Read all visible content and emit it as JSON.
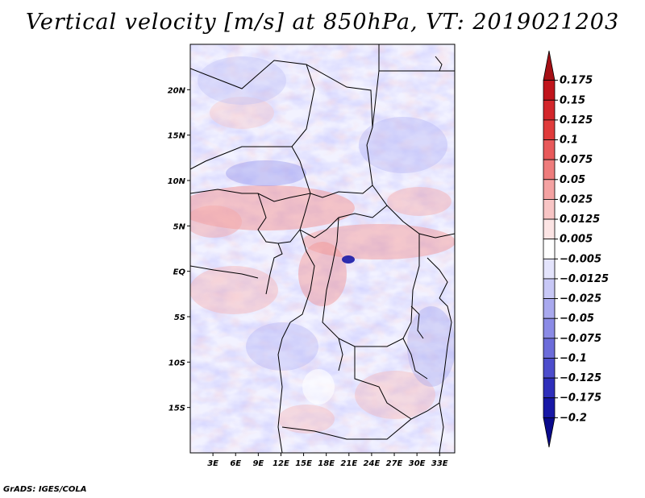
{
  "title": "Vertical velocity [m/s] at 850hPa, VT: 2019021203",
  "footer": "GrADS: IGES/COLA",
  "map": {
    "lat_labels": [
      "20N",
      "15N",
      "10N",
      "5N",
      "EQ",
      "5S",
      "10S",
      "15S"
    ],
    "lat_values": [
      20,
      15,
      10,
      5,
      0,
      -5,
      -10,
      -15
    ],
    "lon_labels": [
      "3E",
      "6E",
      "9E",
      "12E",
      "15E",
      "18E",
      "21E",
      "24E",
      "27E",
      "30E",
      "33E"
    ],
    "lon_values": [
      3,
      6,
      9,
      12,
      15,
      18,
      21,
      24,
      27,
      30,
      33
    ],
    "lon_range": [
      0,
      35
    ],
    "lat_range": [
      -20,
      25
    ]
  },
  "colorbar": {
    "labels": [
      "0.175",
      "0.15",
      "0.125",
      "0.1",
      "0.075",
      "0.05",
      "0.025",
      "0.0125",
      "0.005",
      "−0.005",
      "−0.0125",
      "−0.025",
      "−0.05",
      "−0.075",
      "−0.1",
      "−0.125",
      "−0.175",
      "−0.2"
    ],
    "colors": [
      "#a50f15",
      "#c0141b",
      "#d3262b",
      "#e03b3b",
      "#e8595a",
      "#ee7c7c",
      "#f4a2a2",
      "#f8c5c5",
      "#fce4e4",
      "#ffffff",
      "#e4e4fc",
      "#c8c8f6",
      "#a9a9ee",
      "#8b8be6",
      "#6c6cda",
      "#4d4dcc",
      "#2f2fbb",
      "#1818a6",
      "#0a0a8c"
    ]
  }
}
